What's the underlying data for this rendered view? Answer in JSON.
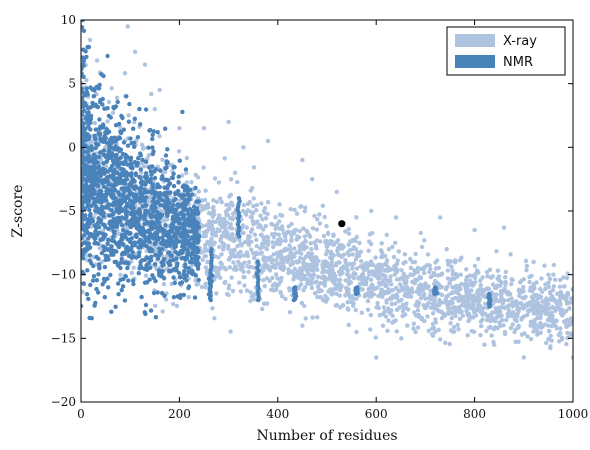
{
  "chart_data": {
    "type": "scatter",
    "xlabel": "Number of residues",
    "ylabel": "Z-score",
    "xlim": [
      0,
      1000
    ],
    "ylim": [
      -20,
      10
    ],
    "x_ticks": [
      "0",
      "200",
      "400",
      "600",
      "800",
      "1000"
    ],
    "y_ticks": [
      "10",
      "5",
      "0",
      "−5",
      "−10",
      "−15",
      "−20"
    ],
    "grid": false,
    "legend_position": "top-right",
    "series": [
      {
        "name": "X-ray",
        "color": "#aec3e0",
        "description_trend": [
          [
            20,
            -2
          ],
          [
            100,
            -4.5
          ],
          [
            200,
            -6.5
          ],
          [
            300,
            -7.5
          ],
          [
            400,
            -8.5
          ],
          [
            500,
            -9.5
          ],
          [
            600,
            -10.5
          ],
          [
            700,
            -11.2
          ],
          [
            800,
            -12
          ],
          [
            900,
            -12.5
          ],
          [
            1000,
            -13
          ]
        ],
        "spread": [
          [
            0,
            8
          ],
          [
            200,
            5
          ],
          [
            400,
            4
          ],
          [
            600,
            3.5
          ],
          [
            800,
            3
          ],
          [
            1000,
            3
          ]
        ],
        "outliers": [
          [
            150,
            3
          ],
          [
            130,
            6.5
          ],
          [
            300,
            2
          ],
          [
            330,
            0
          ],
          [
            200,
            1.5
          ],
          [
            250,
            1.5
          ],
          [
            470,
            -2.5
          ],
          [
            520,
            -3.5
          ],
          [
            590,
            -5
          ],
          [
            640,
            -5.5
          ],
          [
            730,
            -5.5
          ],
          [
            800,
            -6.5
          ],
          [
            860,
            -6.3
          ],
          [
            920,
            -9
          ],
          [
            960,
            -10
          ],
          [
            450,
            -1
          ],
          [
            380,
            0.5
          ],
          [
            95,
            9.5
          ],
          [
            110,
            7.5
          ],
          [
            160,
            4.5
          ],
          [
            680,
            -14.5
          ],
          [
            720,
            -14.5
          ],
          [
            820,
            -15.5
          ],
          [
            900,
            -16.5
          ],
          [
            600,
            -16.5
          ],
          [
            560,
            -14.5
          ],
          [
            450,
            -14
          ],
          [
            1000,
            -16.5
          ]
        ]
      },
      {
        "name": "NMR",
        "color": "#4a82ba",
        "description_trend": [
          [
            5,
            -2
          ],
          [
            30,
            -3
          ],
          [
            60,
            -3.5
          ],
          [
            100,
            -4.5
          ],
          [
            150,
            -5.5
          ],
          [
            200,
            -6.5
          ],
          [
            240,
            -7.2
          ]
        ],
        "spread": [
          [
            0,
            12
          ],
          [
            100,
            8
          ],
          [
            200,
            6
          ],
          [
            240,
            4
          ]
        ],
        "highlights": [
          [
            530,
            -6
          ]
        ]
      }
    ]
  }
}
